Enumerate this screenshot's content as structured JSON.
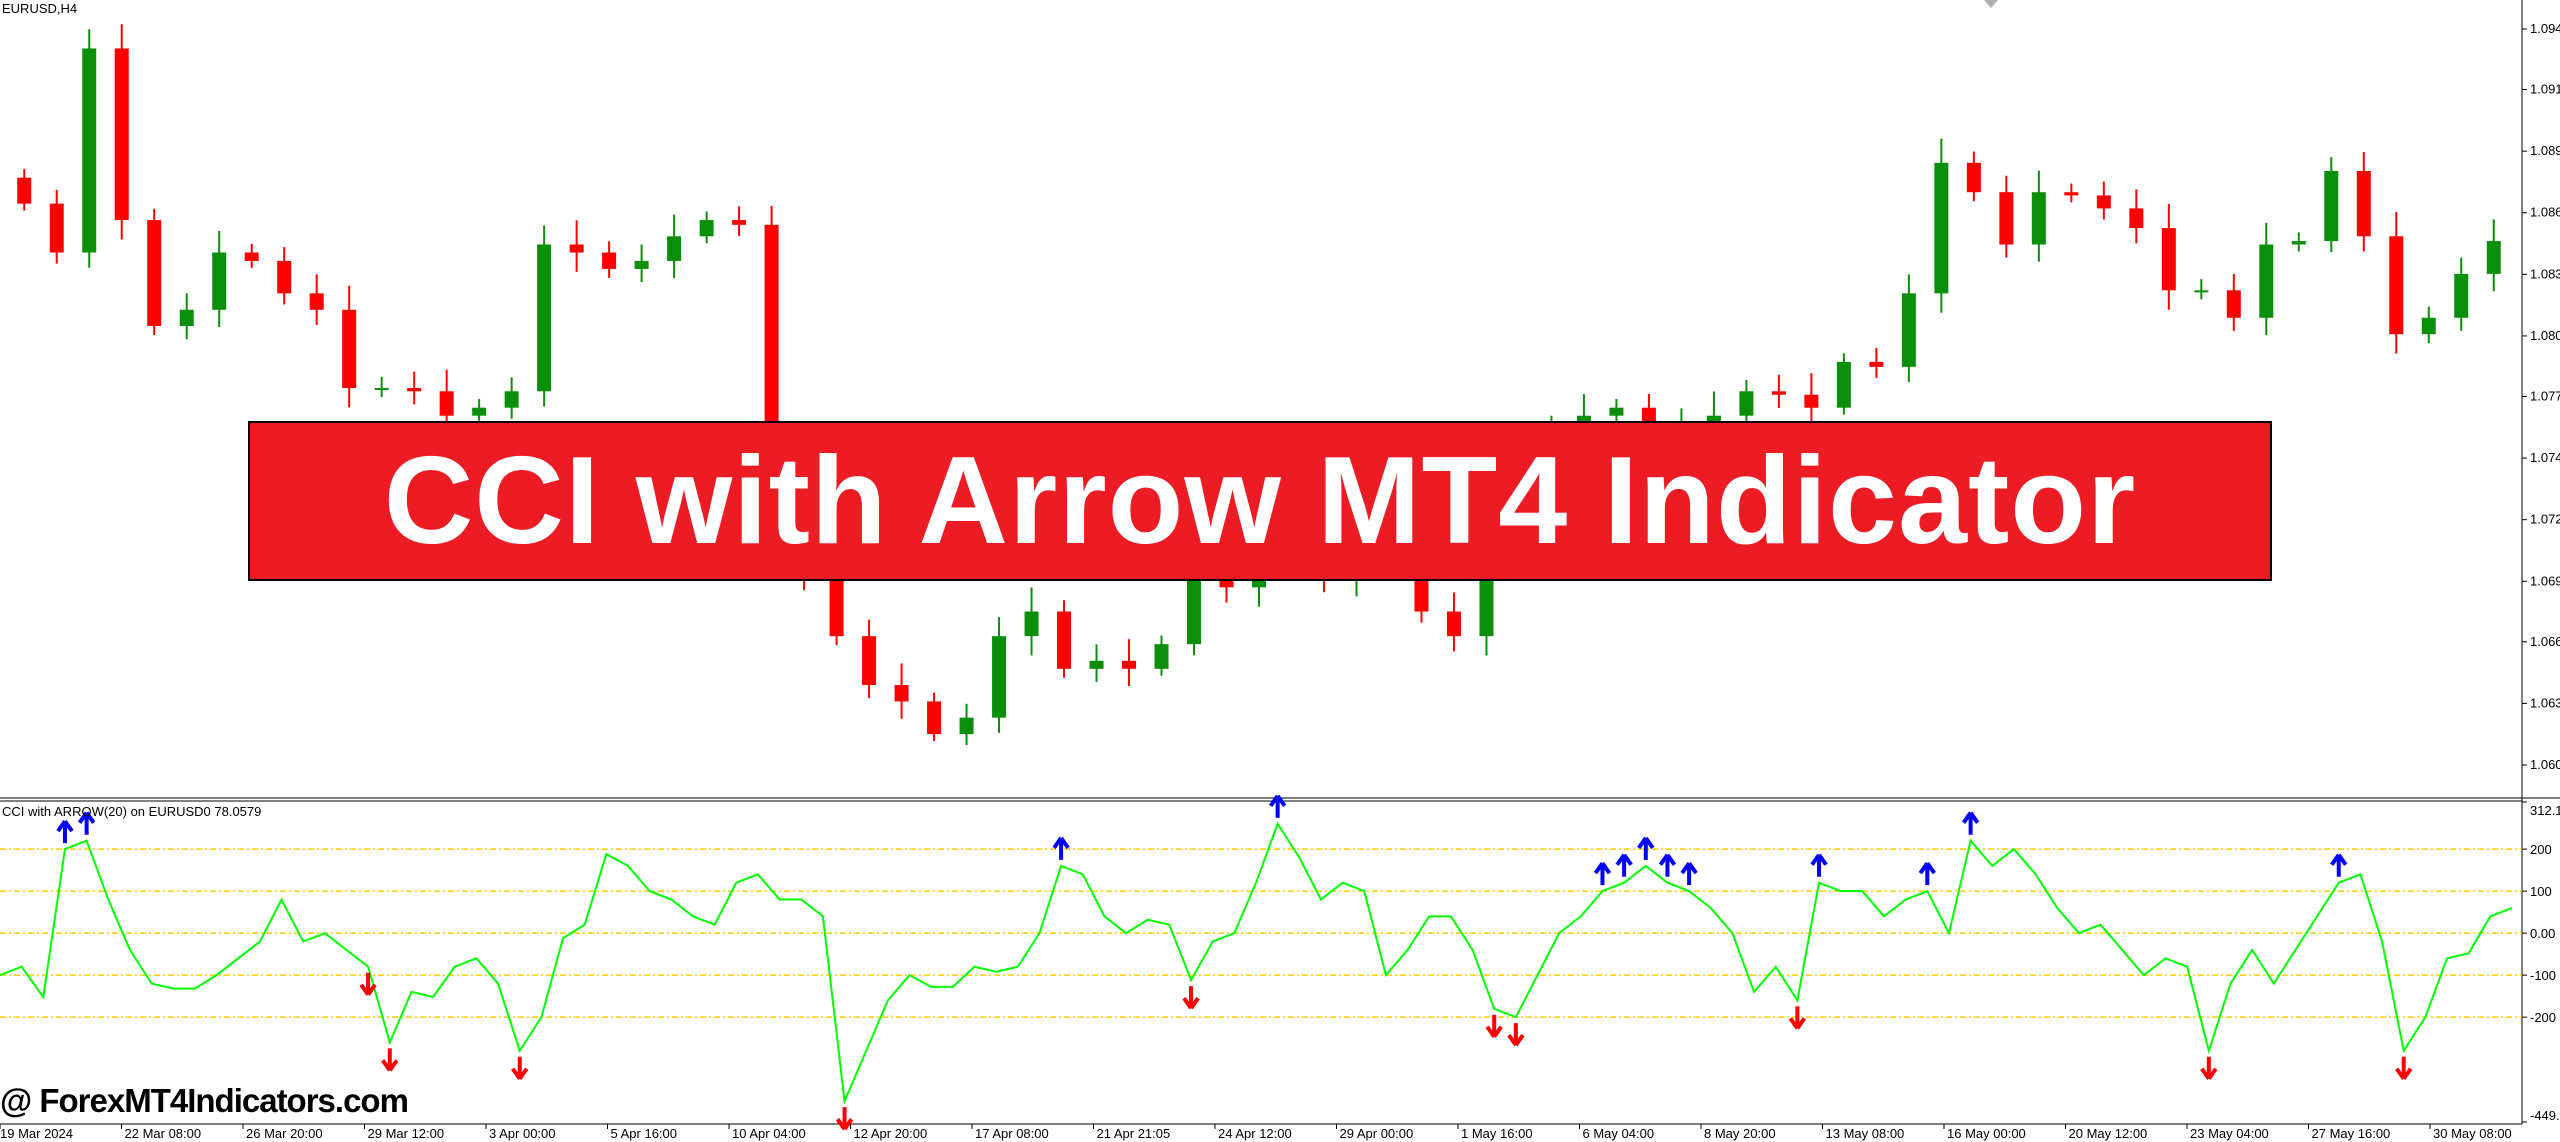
{
  "window": {
    "symbol_label": "EURUSD,H4"
  },
  "indicator": {
    "label": "CCI with ARROW(20) on EURUSD0 78.0579"
  },
  "banner": {
    "title": "CCI with Arrow MT4 Indicator",
    "background": "#ed1c24"
  },
  "watermark": {
    "text": "@ ForexMT4Indicators.com"
  },
  "colors": {
    "bull": "#0a8f0a",
    "bear": "#ff0000",
    "cci_line": "#00ff00",
    "level": "#ffcc00",
    "up_arrow": "#0000ff",
    "down_arrow": "#ff0000"
  },
  "chart_data": [
    {
      "type": "candlestick",
      "symbol": "EURUSD",
      "timeframe": "H4",
      "price_ticks": [
        "1.09475",
        "1.09195",
        "1.08910",
        "1.08625",
        "1.08340",
        "1.08055",
        "1.07775",
        "1.07490",
        "1.07205",
        "1.06920",
        "1.06640",
        "1.06355",
        "1.06070"
      ],
      "ylim": [
        1.0607,
        1.09475
      ],
      "closes": [
        1.08667,
        1.08441,
        1.09385,
        1.08591,
        1.08101,
        1.08176,
        1.08441,
        1.08402,
        1.08252,
        1.08176,
        1.07814,
        1.07814,
        1.07799,
        1.07686,
        1.07723,
        1.07799,
        1.08478,
        1.08441,
        1.08365,
        1.08402,
        1.08516,
        1.08591,
        1.08569,
        1.07346,
        1.06968,
        1.06666,
        1.0644,
        1.06364,
        1.06213,
        1.06289,
        1.06666,
        1.0678,
        1.06515,
        1.06552,
        1.06515,
        1.06629,
        1.06968,
        1.06892,
        1.07006,
        1.07044,
        1.0693,
        1.07044,
        1.07006,
        1.0678,
        1.06666,
        1.06968,
        1.0727,
        1.0761,
        1.07686,
        1.07723,
        1.0761,
        1.07632,
        1.07686,
        1.07799,
        1.07783,
        1.07723,
        1.07935,
        1.07912,
        1.08252,
        1.08856,
        1.0872,
        1.08478,
        1.0872,
        1.08705,
        1.08645,
        1.08554,
        1.08266,
        1.08266,
        1.08139,
        1.08478,
        1.08494,
        1.08818,
        1.08516,
        1.08063,
        1.08139,
        1.08342,
        1.08494
      ]
    },
    {
      "type": "line",
      "name": "CCI with ARROW(20)",
      "ylim": [
        -449.5402,
        312.1122
      ],
      "y_ticks": [
        "312.1122",
        "200",
        "100",
        "0.00",
        "-100",
        "-200",
        "-449.5402"
      ],
      "levels": [
        200,
        100,
        0,
        -100,
        -200
      ],
      "values": [
        -100,
        -80,
        -152,
        200,
        220,
        80,
        -40,
        -120,
        -132,
        -132,
        -100,
        -60,
        -20,
        80,
        -20,
        0,
        -40,
        -80,
        -260,
        -140,
        -152,
        -80,
        -60,
        -120,
        -280,
        -200,
        -12,
        20,
        188,
        160,
        100,
        80,
        40,
        20,
        120,
        140,
        80,
        80,
        40,
        -400,
        -280,
        -160,
        -100,
        -128,
        -128,
        -80,
        -92,
        -80,
        0,
        160,
        140,
        40,
        0,
        32,
        20,
        -112,
        -20,
        0,
        120,
        260,
        180,
        80,
        120,
        100,
        -100,
        -40,
        40,
        40,
        -40,
        -180,
        -200,
        -100,
        0,
        40,
        100,
        120,
        160,
        120,
        100,
        60,
        0,
        -140,
        -80,
        -160,
        120,
        100,
        100,
        40,
        80,
        100,
        0,
        220,
        160,
        200,
        140,
        60,
        0,
        20,
        -40,
        -100,
        -60,
        -80,
        -280,
        -120,
        -40,
        -120,
        -40,
        40,
        120,
        140,
        -20,
        -280,
        -200,
        -60,
        -48,
        40,
        60
      ],
      "up_arrow_points": [
        3,
        4,
        49,
        59,
        74,
        75,
        76,
        77,
        78,
        84,
        89,
        91,
        108
      ],
      "down_arrow_points": [
        17,
        18,
        24,
        39,
        55,
        69,
        70,
        83,
        102,
        111
      ]
    }
  ],
  "time_axis": [
    "19 Mar 2024",
    "22 Mar 08:00",
    "26 Mar 20:00",
    "29 Mar 12:00",
    "3 Apr 00:00",
    "5 Apr 16:00",
    "10 Apr 04:00",
    "12 Apr 20:00",
    "17 Apr 08:00",
    "21 Apr 21:05",
    "24 Apr 12:00",
    "29 Apr 00:00",
    "1 May 16:00",
    "6 May 04:00",
    "8 May 20:00",
    "13 May 08:00",
    "16 May 00:00",
    "20 May 12:00",
    "23 May 04:00",
    "27 May 16:00",
    "30 May 08:00"
  ]
}
